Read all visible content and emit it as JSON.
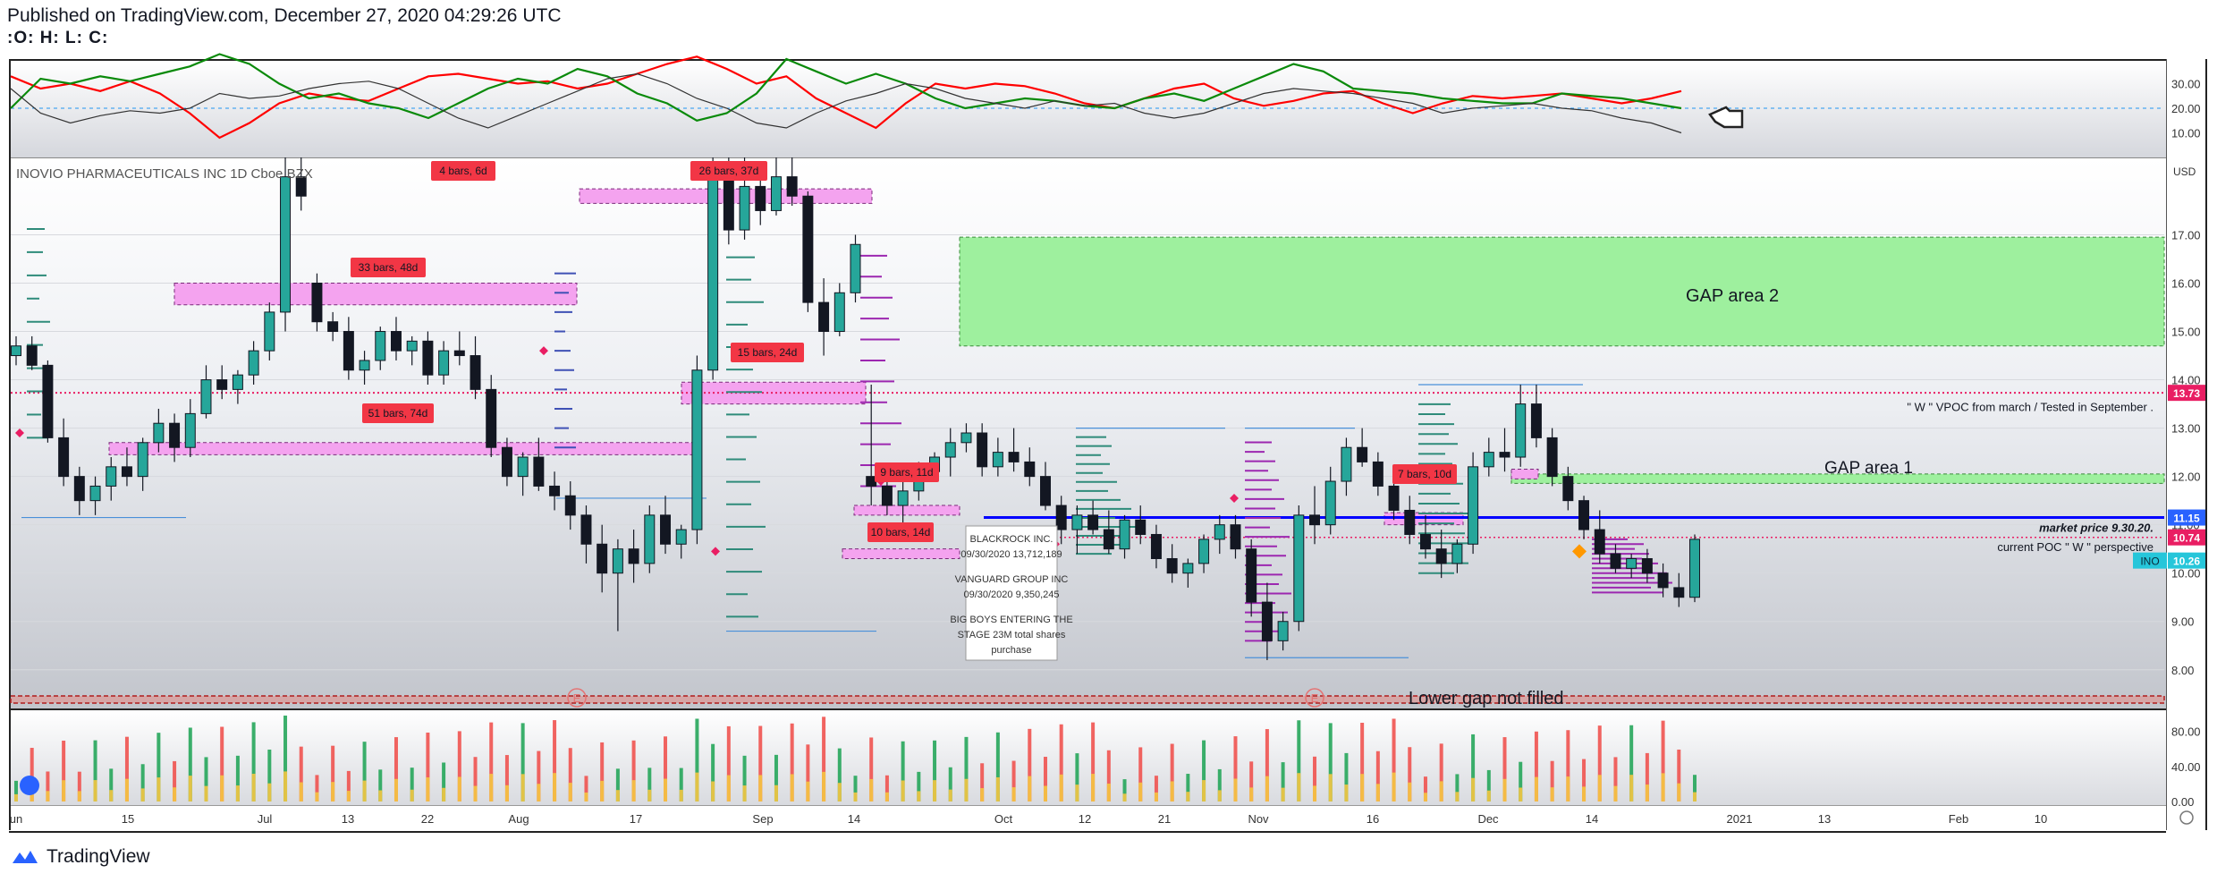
{
  "header": {
    "published": "Published on TradingView.com, December 27, 2020 04:29:26 UTC",
    "ohlc": ":O: H: L: C:"
  },
  "footer": {
    "brand": "TradingView"
  },
  "symbol_legend": "INOVIO PHARMACEUTICALS INC 1D Cboe BZX",
  "colors": {
    "up": "#26a69a",
    "down": "#131722",
    "bars_label": "#f23645",
    "gap_area": "#9ef09e",
    "range_box": "#f4a3ef",
    "vp": "#9c27b0",
    "market_price": "#0000ff",
    "vpoc_line": "#e91e63",
    "stoch_red": "#ff0000",
    "stoch_green": "#0a8a0a"
  },
  "chart_data": [
    {
      "type": "line",
      "name": "oscillator",
      "ylim": [
        0,
        40
      ],
      "tick_labels": [
        "30.00",
        "20.00",
        "10.00"
      ],
      "tick_values": [
        30,
        20,
        10
      ],
      "series": [
        {
          "color": "#ff0000",
          "values": [
            33,
            28,
            30,
            27,
            31,
            26,
            18,
            8,
            14,
            22,
            26,
            24,
            23,
            28,
            33,
            34,
            32,
            30,
            31,
            28,
            30,
            34,
            38,
            41,
            36,
            30,
            33,
            24,
            18,
            12,
            22,
            30,
            28,
            30,
            29,
            26,
            22,
            20,
            24,
            28,
            30,
            24,
            21,
            23,
            26,
            27,
            22,
            18,
            22,
            25,
            24,
            25,
            26,
            24,
            22,
            24,
            27
          ]
        },
        {
          "color": "#0a8a0a",
          "values": [
            20,
            32,
            30,
            33,
            31,
            34,
            37,
            42,
            38,
            30,
            24,
            26,
            22,
            20,
            16,
            22,
            28,
            32,
            30,
            36,
            33,
            26,
            22,
            15,
            18,
            26,
            40,
            35,
            30,
            34,
            30,
            24,
            20,
            22,
            24,
            23,
            21,
            20,
            24,
            26,
            23,
            28,
            33,
            38,
            35,
            28,
            27,
            26,
            24,
            23,
            22,
            22,
            26,
            25,
            24,
            22,
            20
          ]
        },
        {
          "color": "#333333",
          "values": [
            28,
            18,
            14,
            17,
            19,
            18,
            20,
            26,
            24,
            25,
            28,
            30,
            31,
            28,
            22,
            16,
            12,
            17,
            22,
            27,
            32,
            34,
            30,
            24,
            20,
            14,
            12,
            18,
            23,
            26,
            30,
            28,
            24,
            22,
            20,
            23,
            21,
            22,
            18,
            16,
            18,
            22,
            26,
            28,
            27,
            26,
            24,
            22,
            18,
            20,
            21,
            22,
            20,
            19,
            16,
            14,
            10
          ]
        }
      ]
    },
    {
      "type": "candlestick",
      "name": "price",
      "ylim": [
        7.2,
        18.6
      ],
      "tick_labels": [
        "17.00",
        "16.00",
        "15.00",
        "14.00",
        "13.00",
        "12.00",
        "11.00",
        "10.00",
        "9.00",
        "8.00"
      ],
      "tick_values": [
        17,
        16,
        15,
        14,
        13,
        12,
        11,
        10,
        9,
        8
      ],
      "last_values": {
        "13.73": "13.73",
        "11.15": "11.15",
        "10.74": "10.74",
        "inv": "10.26"
      },
      "candles": [
        [
          14.5,
          14.9,
          14.3,
          14.7
        ],
        [
          14.7,
          14.9,
          14.2,
          14.3
        ],
        [
          14.3,
          14.4,
          12.7,
          12.8
        ],
        [
          12.8,
          13.2,
          11.8,
          12.0
        ],
        [
          12.0,
          12.2,
          11.2,
          11.5
        ],
        [
          11.5,
          12.0,
          11.2,
          11.8
        ],
        [
          11.8,
          12.4,
          11.5,
          12.2
        ],
        [
          12.2,
          12.6,
          11.8,
          12.0
        ],
        [
          12.0,
          12.8,
          11.7,
          12.7
        ],
        [
          12.7,
          13.4,
          12.5,
          13.1
        ],
        [
          13.1,
          13.3,
          12.3,
          12.6
        ],
        [
          12.6,
          13.6,
          12.4,
          13.3
        ],
        [
          13.3,
          14.3,
          13.2,
          14.0
        ],
        [
          14.0,
          14.3,
          13.6,
          13.8
        ],
        [
          13.8,
          14.2,
          13.5,
          14.1
        ],
        [
          14.1,
          14.8,
          13.9,
          14.6
        ],
        [
          14.6,
          15.6,
          14.4,
          15.4
        ],
        [
          15.4,
          18.6,
          15.0,
          18.2
        ],
        [
          18.2,
          18.6,
          17.5,
          17.8
        ],
        [
          16.0,
          16.2,
          15.0,
          15.2
        ],
        [
          15.2,
          15.4,
          14.8,
          15.0
        ],
        [
          15.0,
          15.3,
          14.0,
          14.2
        ],
        [
          14.2,
          14.6,
          13.9,
          14.4
        ],
        [
          14.4,
          15.1,
          14.2,
          15.0
        ],
        [
          15.0,
          15.3,
          14.4,
          14.6
        ],
        [
          14.6,
          14.9,
          14.3,
          14.8
        ],
        [
          14.8,
          15.0,
          13.9,
          14.1
        ],
        [
          14.1,
          14.8,
          13.9,
          14.6
        ],
        [
          14.6,
          15.0,
          14.3,
          14.5
        ],
        [
          14.5,
          14.9,
          13.6,
          13.8
        ],
        [
          13.8,
          14.1,
          12.4,
          12.6
        ],
        [
          12.6,
          12.8,
          11.8,
          12.0
        ],
        [
          12.0,
          12.5,
          11.6,
          12.4
        ],
        [
          12.4,
          12.8,
          11.7,
          11.8
        ],
        [
          11.8,
          12.1,
          11.3,
          11.6
        ],
        [
          11.6,
          11.9,
          10.9,
          11.2
        ],
        [
          11.2,
          11.4,
          10.2,
          10.6
        ],
        [
          10.6,
          11.0,
          9.6,
          10.0
        ],
        [
          10.0,
          10.7,
          8.8,
          10.5
        ],
        [
          10.5,
          10.9,
          9.8,
          10.2
        ],
        [
          10.2,
          11.4,
          10.0,
          11.2
        ],
        [
          11.2,
          11.6,
          10.4,
          10.6
        ],
        [
          10.6,
          11.0,
          10.3,
          10.9
        ],
        [
          10.9,
          14.5,
          10.6,
          14.2
        ],
        [
          14.2,
          18.6,
          14.0,
          18.4
        ],
        [
          18.4,
          18.6,
          16.8,
          17.1
        ],
        [
          17.1,
          18.6,
          16.9,
          18.0
        ],
        [
          18.0,
          18.4,
          17.2,
          17.5
        ],
        [
          17.5,
          18.6,
          17.4,
          18.2
        ],
        [
          18.2,
          18.6,
          17.6,
          17.8
        ],
        [
          17.8,
          17.9,
          15.4,
          15.6
        ],
        [
          15.6,
          16.1,
          14.5,
          15.0
        ],
        [
          15.0,
          16.0,
          14.9,
          15.8
        ],
        [
          15.8,
          17.0,
          15.6,
          16.8
        ],
        [
          12.0,
          13.9,
          11.4,
          11.8
        ],
        [
          11.8,
          12.0,
          11.2,
          11.4
        ],
        [
          11.4,
          11.9,
          10.8,
          11.7
        ],
        [
          11.7,
          12.3,
          11.5,
          12.1
        ],
        [
          12.1,
          12.5,
          11.9,
          12.4
        ],
        [
          12.4,
          13.0,
          12.0,
          12.7
        ],
        [
          12.7,
          13.1,
          12.5,
          12.9
        ],
        [
          12.9,
          13.1,
          12.0,
          12.2
        ],
        [
          12.2,
          12.8,
          12.0,
          12.5
        ],
        [
          12.5,
          13.0,
          12.1,
          12.3
        ],
        [
          12.3,
          12.6,
          11.8,
          12.0
        ],
        [
          12.0,
          12.3,
          11.3,
          11.4
        ],
        [
          11.4,
          11.6,
          10.6,
          10.9
        ],
        [
          10.9,
          11.4,
          10.4,
          11.2
        ],
        [
          11.2,
          11.5,
          10.8,
          10.9
        ],
        [
          10.9,
          11.3,
          10.4,
          10.5
        ],
        [
          10.5,
          11.2,
          10.3,
          11.1
        ],
        [
          11.1,
          11.4,
          10.6,
          10.8
        ],
        [
          10.8,
          11.0,
          10.1,
          10.3
        ],
        [
          10.3,
          10.6,
          9.8,
          10.0
        ],
        [
          10.0,
          10.3,
          9.7,
          10.2
        ],
        [
          10.2,
          10.8,
          10.0,
          10.7
        ],
        [
          10.7,
          11.2,
          10.4,
          11.0
        ],
        [
          11.0,
          11.2,
          10.3,
          10.5
        ],
        [
          10.5,
          10.7,
          9.1,
          9.4
        ],
        [
          9.4,
          9.8,
          8.2,
          8.6
        ],
        [
          8.6,
          9.2,
          8.4,
          9.0
        ],
        [
          9.0,
          11.4,
          8.8,
          11.2
        ],
        [
          11.2,
          11.8,
          10.6,
          11.0
        ],
        [
          11.0,
          12.2,
          10.8,
          11.9
        ],
        [
          11.9,
          12.8,
          11.6,
          12.6
        ],
        [
          12.6,
          13.0,
          12.2,
          12.3
        ],
        [
          12.3,
          12.5,
          11.6,
          11.8
        ],
        [
          11.8,
          12.0,
          11.1,
          11.3
        ],
        [
          11.3,
          11.6,
          10.6,
          10.8
        ],
        [
          10.8,
          11.2,
          10.3,
          10.5
        ],
        [
          10.5,
          10.9,
          9.9,
          10.2
        ],
        [
          10.2,
          10.7,
          10.0,
          10.6
        ],
        [
          10.6,
          12.5,
          10.4,
          12.2
        ],
        [
          12.2,
          12.8,
          12.0,
          12.5
        ],
        [
          12.5,
          13.0,
          12.1,
          12.4
        ],
        [
          12.4,
          13.9,
          12.2,
          13.5
        ],
        [
          13.5,
          13.9,
          12.6,
          12.8
        ],
        [
          12.8,
          13.0,
          11.8,
          12.0
        ],
        [
          12.0,
          12.2,
          11.3,
          11.5
        ],
        [
          11.5,
          11.6,
          10.7,
          10.9
        ],
        [
          10.9,
          11.3,
          10.2,
          10.4
        ],
        [
          10.4,
          10.6,
          10.0,
          10.1
        ],
        [
          10.1,
          10.4,
          9.9,
          10.3
        ],
        [
          10.3,
          10.5,
          9.8,
          10.0
        ],
        [
          10.0,
          10.2,
          9.5,
          9.7
        ],
        [
          9.7,
          10.0,
          9.3,
          9.5
        ],
        [
          9.5,
          10.8,
          9.4,
          10.7
        ]
      ],
      "annotations": [
        {
          "label": "4 bars, 6d"
        },
        {
          "label": "26 bars, 37d"
        },
        {
          "label": "33 bars, 48d"
        },
        {
          "label": "15 bars, 24d"
        },
        {
          "label": "51 bars, 74d"
        },
        {
          "label": "9 bars, 11d"
        },
        {
          "label": "10 bars, 14d"
        },
        {
          "label": "7 bars, 10d"
        }
      ],
      "text_labels": {
        "gap2": "GAP area 2",
        "gap1": "GAP area  1",
        "vpoc_note": "\" W \" VPOC from march /  Tested  in September .",
        "market_price": "market price 9.30.20.",
        "current_poc": "current  POC \" W \" perspective",
        "lower_gap": "Lower gap  not filled",
        "usd": "USD",
        "inv": "INO"
      },
      "note_box": [
        "BLACKROCK INC.",
        "09/30/2020 13,712,189",
        "VANGUARD GROUP INC",
        "09/30/2020 9,350,245",
        "BIG BOYS ENTERING THE",
        "STAGE   23M total shares",
        "purchase"
      ],
      "earnings_marker": "E"
    },
    {
      "type": "bar",
      "name": "volume",
      "ylim": [
        0,
        100
      ],
      "tick_labels": [
        "80.00",
        "40.00",
        "0.00"
      ],
      "tick_values": [
        80,
        40,
        0
      ]
    }
  ],
  "x_axis": {
    "labels": [
      "un",
      "15",
      "Jul",
      "13",
      "22",
      "Aug",
      "17",
      "Sep",
      "14",
      "Oct",
      "12",
      "21",
      "Nov",
      "16",
      "Dec",
      "14",
      "2021",
      "13",
      "Feb",
      "10"
    ]
  }
}
